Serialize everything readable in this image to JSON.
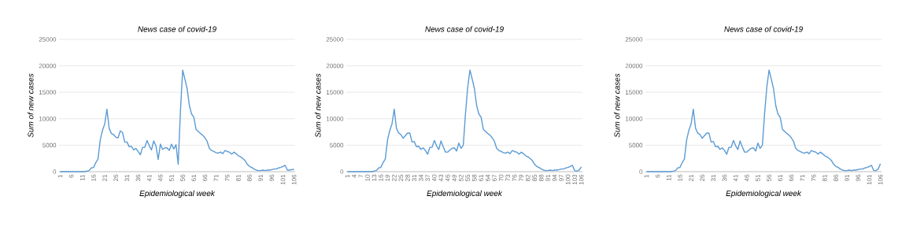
{
  "chart_data": [
    {
      "type": "line",
      "title": "News case of covid-19",
      "xlabel": "Epidemiological week",
      "ylabel": "Sum of new cases",
      "grid": "y",
      "ylim": [
        0,
        25000
      ],
      "yticks": [
        0,
        5000,
        10000,
        15000,
        20000,
        25000
      ],
      "color": "#5b9bd5",
      "categories": [
        "1",
        null,
        null,
        null,
        null,
        "6",
        null,
        null,
        null,
        null,
        "11",
        null,
        null,
        null,
        null,
        "16",
        null,
        null,
        null,
        null,
        "21",
        null,
        null,
        null,
        null,
        "26",
        null,
        null,
        null,
        null,
        "31",
        null,
        null,
        null,
        null,
        "36",
        null,
        null,
        null,
        null,
        "41",
        null,
        null,
        null,
        null,
        "46",
        null,
        null,
        null,
        null,
        "51",
        null,
        null,
        null,
        null,
        "56",
        null,
        null,
        null,
        null,
        "61",
        null,
        null,
        null,
        null,
        "66",
        null,
        null,
        null,
        null,
        "71",
        null,
        null,
        null,
        null,
        "76",
        null,
        null,
        null,
        null,
        "81",
        null,
        null,
        null,
        null,
        "86",
        null,
        null,
        null,
        null,
        "91",
        null,
        null,
        null,
        null,
        "96",
        null,
        null,
        null,
        null,
        "101",
        null,
        null,
        null,
        null,
        "106"
      ],
      "values": [
        0,
        0,
        0,
        0,
        0,
        0,
        0,
        0,
        0,
        0,
        0,
        0,
        100,
        200,
        700,
        800,
        1700,
        2400,
        6000,
        7800,
        9000,
        11800,
        8200,
        7200,
        7000,
        6500,
        6400,
        7700,
        7400,
        5600,
        5600,
        4700,
        4800,
        4100,
        4400,
        3800,
        3200,
        4600,
        4600,
        5900,
        4900,
        4100,
        5800,
        4900,
        2300,
        5200,
        4200,
        4500,
        4500,
        4000,
        5200,
        4300,
        5100,
        1400,
        11500,
        19200,
        17500,
        15700,
        12500,
        10900,
        10300,
        8000,
        7600,
        7200,
        6900,
        6400,
        5700,
        4400,
        4000,
        3800,
        3600,
        3500,
        3700,
        3400,
        4000,
        3800,
        3700,
        3300,
        3700,
        3400,
        3000,
        2800,
        2500,
        2100,
        1400,
        1000,
        800,
        500,
        300,
        200,
        200,
        300,
        200,
        300,
        300,
        400,
        500,
        500,
        700,
        800,
        1000,
        1200,
        300,
        300,
        400,
        400
      ]
    },
    {
      "type": "line",
      "title": "News case of covid-19",
      "xlabel": "Epidemiological week",
      "ylabel": "Sum of new cases",
      "grid": "y",
      "ylim": [
        0,
        25000
      ],
      "yticks": [
        0,
        5000,
        10000,
        15000,
        20000,
        25000
      ],
      "color": "#5b9bd5",
      "categories": [
        "1",
        null,
        null,
        "4",
        null,
        null,
        "7",
        null,
        null,
        "10",
        null,
        null,
        "13",
        null,
        null,
        "16",
        null,
        null,
        "19",
        null,
        null,
        "22",
        null,
        null,
        "25",
        null,
        null,
        "28",
        null,
        null,
        "31",
        null,
        null,
        "34",
        null,
        null,
        "37",
        null,
        null,
        "40",
        null,
        null,
        "43",
        null,
        null,
        "46",
        null,
        null,
        "49",
        null,
        null,
        "52",
        null,
        null,
        "55",
        null,
        null,
        "58",
        null,
        null,
        "61",
        null,
        null,
        "64",
        null,
        null,
        "67",
        null,
        null,
        "70",
        null,
        null,
        "73",
        null,
        null,
        "76",
        null,
        null,
        "79",
        null,
        null,
        "82",
        null,
        null,
        "85",
        null,
        null,
        "88",
        null,
        null,
        "91",
        null,
        null,
        "94",
        null,
        null,
        "97",
        null,
        null,
        "100",
        null,
        null,
        "103",
        null,
        null,
        "106"
      ],
      "values": [
        0,
        0,
        0,
        0,
        0,
        0,
        0,
        0,
        0,
        0,
        0,
        0,
        100,
        200,
        700,
        800,
        1700,
        2400,
        6000,
        7800,
        9000,
        11800,
        8200,
        7300,
        7000,
        6300,
        6800,
        7300,
        7300,
        5600,
        5700,
        4700,
        4800,
        4200,
        4500,
        4000,
        3300,
        4600,
        4600,
        5900,
        4900,
        4200,
        5800,
        4700,
        3700,
        3700,
        4100,
        4400,
        4500,
        3900,
        5400,
        4400,
        5000,
        11000,
        16000,
        19200,
        17500,
        15700,
        12500,
        10900,
        10300,
        8000,
        7600,
        7200,
        6900,
        6400,
        5700,
        4400,
        4000,
        3800,
        3600,
        3500,
        3700,
        3400,
        4000,
        3800,
        3700,
        3300,
        3700,
        3400,
        3000,
        2800,
        2500,
        2100,
        1400,
        1000,
        800,
        500,
        300,
        200,
        200,
        300,
        200,
        300,
        300,
        400,
        500,
        500,
        700,
        800,
        1000,
        1200,
        200,
        100,
        300,
        900
      ]
    },
    {
      "type": "line",
      "title": "News case of covid-19",
      "xlabel": "Epidemiological week",
      "ylabel": "Sum of new cases",
      "grid": "y",
      "ylim": [
        0,
        25000
      ],
      "yticks": [
        0,
        5000,
        10000,
        15000,
        20000,
        25000
      ],
      "color": "#5b9bd5",
      "categories": [
        "1",
        null,
        null,
        null,
        null,
        "6",
        null,
        null,
        null,
        null,
        "11",
        null,
        null,
        null,
        null,
        "16",
        null,
        null,
        null,
        null,
        "21",
        null,
        null,
        null,
        null,
        "26",
        null,
        null,
        null,
        null,
        "31",
        null,
        null,
        null,
        null,
        "36",
        null,
        null,
        null,
        null,
        "41",
        null,
        null,
        null,
        null,
        "46",
        null,
        null,
        null,
        null,
        "51",
        null,
        null,
        null,
        null,
        "56",
        null,
        null,
        null,
        null,
        "61",
        null,
        null,
        null,
        null,
        "66",
        null,
        null,
        null,
        null,
        "71",
        null,
        null,
        null,
        null,
        "76",
        null,
        null,
        null,
        null,
        "81",
        null,
        null,
        null,
        null,
        "86",
        null,
        null,
        null,
        null,
        "91",
        null,
        null,
        null,
        null,
        "96",
        null,
        null,
        null,
        null,
        "101",
        null,
        null,
        null,
        null,
        "106"
      ],
      "values": [
        0,
        0,
        0,
        0,
        0,
        0,
        0,
        0,
        0,
        0,
        0,
        0,
        100,
        200,
        700,
        800,
        1700,
        2400,
        6000,
        7800,
        9000,
        11800,
        8200,
        7300,
        7000,
        6300,
        6800,
        7300,
        7300,
        5600,
        5700,
        4700,
        4800,
        4200,
        4500,
        4000,
        3300,
        4600,
        4600,
        5900,
        4900,
        4200,
        5800,
        4700,
        3700,
        3700,
        4100,
        4400,
        4500,
        3900,
        5400,
        4400,
        5000,
        11000,
        16000,
        19200,
        17500,
        15700,
        12500,
        10900,
        10300,
        8000,
        7600,
        7200,
        6900,
        6400,
        5700,
        4400,
        4000,
        3800,
        3600,
        3500,
        3700,
        3400,
        4000,
        3800,
        3700,
        3300,
        3700,
        3400,
        3000,
        2800,
        2500,
        2100,
        1400,
        1000,
        800,
        500,
        300,
        200,
        200,
        300,
        200,
        300,
        300,
        400,
        500,
        500,
        700,
        800,
        1000,
        1200,
        200,
        200,
        500,
        1500
      ]
    }
  ]
}
